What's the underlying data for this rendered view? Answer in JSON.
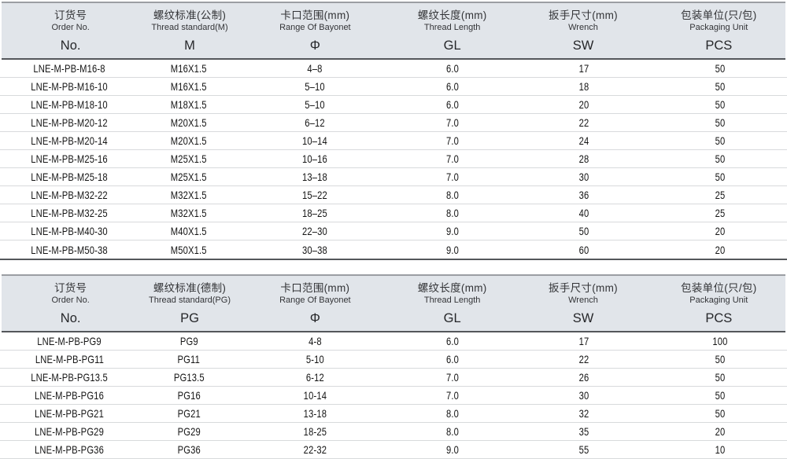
{
  "colors": {
    "header_bg": "#e1e5ea",
    "header_top_border": "#9b9ea3",
    "header_bottom_border": "#54575b",
    "row_divider": "#d8dadc",
    "data_text": "#141414",
    "header_text": "#333437"
  },
  "column_keys": [
    "order-no",
    "thread-standard",
    "bayonet-range",
    "thread-length",
    "wrench-size",
    "packaging-unit"
  ],
  "tables": [
    {
      "name": "metric-thread-table",
      "columns": [
        {
          "cn": "订货号",
          "en": "Order No.",
          "sym": "No."
        },
        {
          "cn": "螺纹标准(公制)",
          "en": "Thread standard(M)",
          "sym": "M"
        },
        {
          "cn": "卡口范围(mm)",
          "en": "Range Of Bayonet",
          "sym": "Φ"
        },
        {
          "cn": "螺纹长度(mm)",
          "en": "Thread Length",
          "sym": "GL"
        },
        {
          "cn": "扳手尺寸(mm)",
          "en": "Wrench",
          "sym": "SW"
        },
        {
          "cn": "包装单位(只/包)",
          "en": "Packaging Unit",
          "sym": "PCS"
        }
      ],
      "rows": [
        [
          "LNE-M-PB-M16-8",
          "M16X1.5",
          "4–8",
          "6.0",
          "17",
          "50"
        ],
        [
          "LNE-M-PB-M16-10",
          "M16X1.5",
          "5–10",
          "6.0",
          "18",
          "50"
        ],
        [
          "LNE-M-PB-M18-10",
          "M18X1.5",
          "5–10",
          "6.0",
          "20",
          "50"
        ],
        [
          "LNE-M-PB-M20-12",
          "M20X1.5",
          "6–12",
          "7.0",
          "22",
          "50"
        ],
        [
          "LNE-M-PB-M20-14",
          "M20X1.5",
          "10–14",
          "7.0",
          "24",
          "50"
        ],
        [
          "LNE-M-PB-M25-16",
          "M25X1.5",
          "10–16",
          "7.0",
          "28",
          "50"
        ],
        [
          "LNE-M-PB-M25-18",
          "M25X1.5",
          "13–18",
          "7.0",
          "30",
          "50"
        ],
        [
          "LNE-M-PB-M32-22",
          "M32X1.5",
          "15–22",
          "8.0",
          "36",
          "25"
        ],
        [
          "LNE-M-PB-M32-25",
          "M32X1.5",
          "18–25",
          "8.0",
          "40",
          "25"
        ],
        [
          "LNE-M-PB-M40-30",
          "M40X1.5",
          "22–30",
          "9.0",
          "50",
          "20"
        ],
        [
          "LNE-M-PB-M50-38",
          "M50X1.5",
          "30–38",
          "9.0",
          "60",
          "20"
        ]
      ]
    },
    {
      "name": "pg-thread-table",
      "columns": [
        {
          "cn": "订货号",
          "en": "Order No.",
          "sym": "No."
        },
        {
          "cn": "螺纹标准(德制)",
          "en": "Thread standard(PG)",
          "sym": "PG"
        },
        {
          "cn": "卡口范围(mm)",
          "en": "Range Of Bayonet",
          "sym": "Φ"
        },
        {
          "cn": "螺纹长度(mm)",
          "en": "Thread Length",
          "sym": "GL"
        },
        {
          "cn": "扳手尺寸(mm)",
          "en": "Wrench",
          "sym": "SW"
        },
        {
          "cn": "包装单位(只/包)",
          "en": "Packaging Unit",
          "sym": "PCS"
        }
      ],
      "rows": [
        [
          "LNE-M-PB-PG9",
          "PG9",
          "4-8",
          "6.0",
          "17",
          "100"
        ],
        [
          "LNE-M-PB-PG11",
          "PG11",
          "5-10",
          "6.0",
          "22",
          "50"
        ],
        [
          "LNE-M-PB-PG13.5",
          "PG13.5",
          "6-12",
          "7.0",
          "26",
          "50"
        ],
        [
          "LNE-M-PB-PG16",
          "PG16",
          "10-14",
          "7.0",
          "30",
          "50"
        ],
        [
          "LNE-M-PB-PG21",
          "PG21",
          "13-18",
          "8.0",
          "32",
          "50"
        ],
        [
          "LNE-M-PB-PG29",
          "PG29",
          "18-25",
          "8.0",
          "35",
          "20"
        ],
        [
          "LNE-M-PB-PG36",
          "PG36",
          "22-32",
          "9.0",
          "55",
          "10"
        ]
      ]
    }
  ]
}
